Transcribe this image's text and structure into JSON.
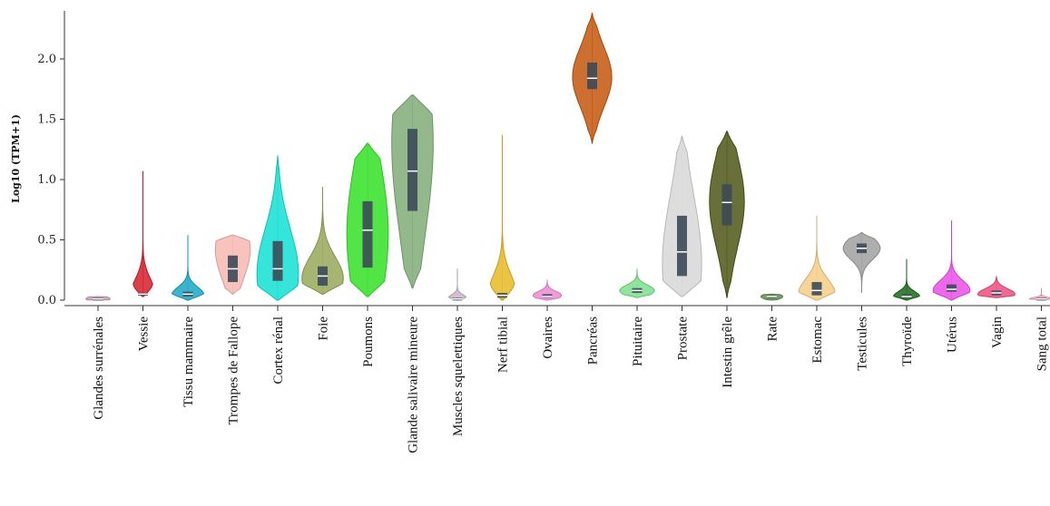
{
  "chart_data": {
    "type": "violin",
    "title": "",
    "ylabel": "Log10 (TPM+1)",
    "xlabel": "",
    "ylim": [
      0,
      2.4
    ],
    "yticks": [
      0.0,
      0.5,
      1.0,
      1.5,
      2.0
    ],
    "ytick_labels": [
      "0.0",
      "0.5",
      "1.0",
      "1.5",
      "2.0"
    ],
    "grid": false,
    "legend": "none",
    "categories": [
      "Glandes surrénales",
      "Vessie",
      "Tissu mammaire",
      "Trompes de Fallope",
      "Cortex rénal",
      "Foie",
      "Poumons",
      "Glande salivaire mineure",
      "Muscles squelettiques",
      "Nerf tibial",
      "Ovaires",
      "Pancréas",
      "Pituitaire",
      "Prostate",
      "Intestin grêle",
      "Rate",
      "Estomac",
      "Testicules",
      "Thyroïde",
      "Utérus",
      "Vagin",
      "Sang total"
    ],
    "series": [
      {
        "color": "#c9a0b4",
        "min": 0.0,
        "max": 0.03,
        "q1": 0.0,
        "median": 0.01,
        "q3": 0.02,
        "peak": 0.01,
        "halfwidth": 0.55
      },
      {
        "color": "#d21e2a",
        "min": 0.03,
        "max": 1.07,
        "q1": 0.04,
        "median": 0.05,
        "q3": 0.06,
        "peak": 0.05,
        "halfwidth": 0.55
      },
      {
        "color": "#1aa7c4",
        "min": 0.0,
        "max": 0.54,
        "q1": 0.03,
        "median": 0.05,
        "q3": 0.07,
        "peak": 0.04,
        "halfwidth": 0.75
      },
      {
        "color": "#f7b8b0",
        "min": 0.05,
        "max": 0.54,
        "q1": 0.15,
        "median": 0.26,
        "q3": 0.37,
        "peak": 0.42,
        "halfwidth": 0.8
      },
      {
        "color": "#13e0d4",
        "min": 0.0,
        "max": 1.2,
        "q1": 0.16,
        "median": 0.26,
        "q3": 0.49,
        "peak": 0.22,
        "halfwidth": 0.95
      },
      {
        "color": "#98a85a",
        "min": 0.05,
        "max": 0.94,
        "q1": 0.12,
        "median": 0.2,
        "q3": 0.28,
        "peak": 0.18,
        "halfwidth": 0.95
      },
      {
        "color": "#33e025",
        "min": 0.03,
        "max": 1.3,
        "q1": 0.27,
        "median": 0.58,
        "q3": 0.82,
        "peak": 0.55,
        "halfwidth": 0.95
      },
      {
        "color": "#7fac78",
        "min": 0.1,
        "max": 1.7,
        "q1": 0.74,
        "median": 1.07,
        "q3": 1.42,
        "peak": 1.3,
        "halfwidth": 0.95
      },
      {
        "color": "#c8b6ce",
        "min": 0.0,
        "max": 0.26,
        "q1": 0.0,
        "median": 0.01,
        "q3": 0.02,
        "peak": 0.01,
        "halfwidth": 0.45
      },
      {
        "color": "#e8b824",
        "min": 0.0,
        "max": 1.37,
        "q1": 0.02,
        "median": 0.04,
        "q3": 0.06,
        "peak": 0.04,
        "halfwidth": 0.65
      },
      {
        "color": "#f08ad6",
        "min": 0.0,
        "max": 0.17,
        "q1": 0.02,
        "median": 0.03,
        "q3": 0.05,
        "peak": 0.04,
        "halfwidth": 0.65
      },
      {
        "color": "#c4560c",
        "min": 1.3,
        "max": 2.38,
        "q1": 1.75,
        "median": 1.84,
        "q3": 1.97,
        "peak": 1.85,
        "halfwidth": 0.9
      },
      {
        "color": "#7be08c",
        "min": 0.02,
        "max": 0.26,
        "q1": 0.06,
        "median": 0.08,
        "q3": 0.1,
        "peak": 0.08,
        "halfwidth": 0.8
      },
      {
        "color": "#d7d7d7",
        "min": 0.03,
        "max": 1.36,
        "q1": 0.2,
        "median": 0.4,
        "q3": 0.7,
        "peak": 0.3,
        "halfwidth": 0.9
      },
      {
        "color": "#4e5616",
        "min": 0.02,
        "max": 1.4,
        "q1": 0.62,
        "median": 0.81,
        "q3": 0.96,
        "peak": 0.82,
        "halfwidth": 0.8
      },
      {
        "color": "#5f8f50",
        "min": 0.0,
        "max": 0.05,
        "q1": 0.02,
        "median": 0.03,
        "q3": 0.04,
        "peak": 0.03,
        "halfwidth": 0.5
      },
      {
        "color": "#f6cc86",
        "min": 0.0,
        "max": 0.7,
        "q1": 0.04,
        "median": 0.08,
        "q3": 0.15,
        "peak": 0.05,
        "halfwidth": 0.85
      },
      {
        "color": "#a0a0a0",
        "min": 0.06,
        "max": 0.56,
        "q1": 0.39,
        "median": 0.43,
        "q3": 0.47,
        "peak": 0.43,
        "halfwidth": 0.85
      },
      {
        "color": "#1a6a1a",
        "min": 0.0,
        "max": 0.34,
        "q1": 0.02,
        "median": 0.03,
        "q3": 0.05,
        "peak": 0.03,
        "halfwidth": 0.6
      },
      {
        "color": "#ea4ee8",
        "min": 0.0,
        "max": 0.66,
        "q1": 0.07,
        "median": 0.09,
        "q3": 0.13,
        "peak": 0.08,
        "halfwidth": 0.85
      },
      {
        "color": "#ee4e7e",
        "min": 0.02,
        "max": 0.2,
        "q1": 0.04,
        "median": 0.06,
        "q3": 0.08,
        "peak": 0.05,
        "halfwidth": 0.85
      },
      {
        "color": "#f0a8c4",
        "min": 0.0,
        "max": 0.1,
        "q1": 0.01,
        "median": 0.01,
        "q3": 0.02,
        "peak": 0.01,
        "halfwidth": 0.55
      }
    ]
  }
}
